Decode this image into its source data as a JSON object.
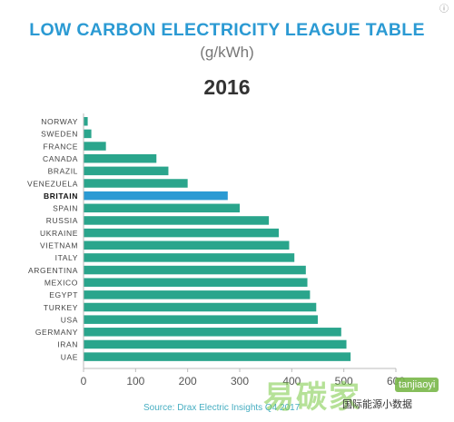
{
  "colors": {
    "title": "#2b9ad3",
    "bar": "#2aa58c",
    "highlight_bar": "#2b9ad3",
    "source": "#47aec2"
  },
  "header": {
    "title": "LOW CARBON ELECTRICITY LEAGUE TABLE",
    "subtitle": "(g/kWh)",
    "year": "2016"
  },
  "footer": {
    "source": "Source: Drax Electric Insights Q4 2017"
  },
  "watermark": {
    "big_text": "易碳家",
    "tag": "tanjiaoyi",
    "account": "国际能源小数据"
  },
  "corner_mark": "ⓘ",
  "chart_data": {
    "type": "bar",
    "orientation": "horizontal",
    "title": "LOW CARBON ELECTRICITY LEAGUE TABLE",
    "subtitle": "(g/kWh)",
    "period": "2016",
    "unit": "g/kWh",
    "categories": [
      "NORWAY",
      "SWEDEN",
      "FRANCE",
      "CANADA",
      "BRAZIL",
      "VENEZUELA",
      "BRITAIN",
      "SPAIN",
      "RUSSIA",
      "UKRAINE",
      "VIETNAM",
      "ITALY",
      "ARGENTINA",
      "MEXICO",
      "EGYPT",
      "TURKEY",
      "USA",
      "GERMANY",
      "IRAN",
      "UAE"
    ],
    "values": [
      8,
      15,
      43,
      140,
      163,
      200,
      277,
      300,
      356,
      375,
      395,
      405,
      427,
      430,
      435,
      447,
      450,
      495,
      505,
      513
    ],
    "highlight": "BRITAIN",
    "xlim": [
      0,
      600
    ],
    "xticks": [
      0,
      100,
      200,
      300,
      400,
      500,
      600
    ],
    "grid": false,
    "legend": "none"
  }
}
